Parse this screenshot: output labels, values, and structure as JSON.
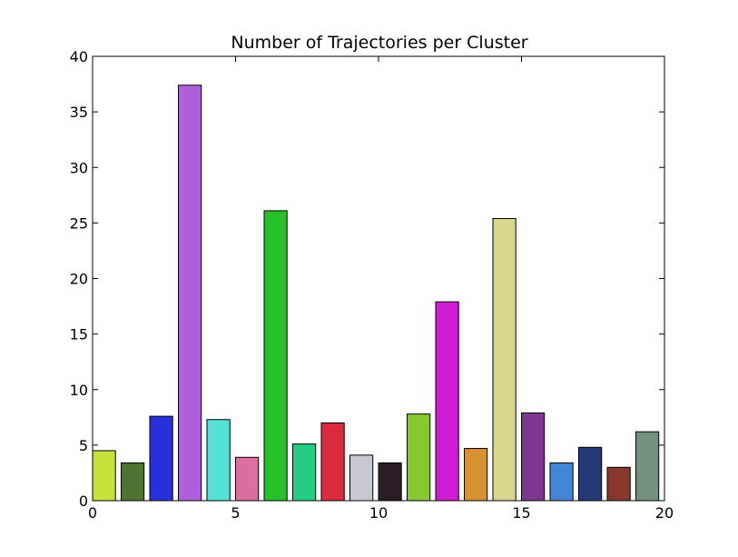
{
  "chart_data": {
    "type": "bar",
    "title": "Number of Trajectories per Cluster",
    "xlabel": "",
    "ylabel": "",
    "xlim": [
      0,
      20
    ],
    "ylim": [
      0,
      40
    ],
    "x_ticks": [
      0,
      5,
      10,
      15,
      20
    ],
    "y_ticks": [
      0,
      5,
      10,
      15,
      20,
      25,
      30,
      35,
      40
    ],
    "grid": false,
    "bar_width": 0.8,
    "bars": [
      {
        "x": 0,
        "value": 4.5,
        "color": "#c5e23a"
      },
      {
        "x": 1,
        "value": 3.4,
        "color": "#4b7531"
      },
      {
        "x": 2,
        "value": 7.6,
        "color": "#2732dc"
      },
      {
        "x": 3,
        "value": 37.4,
        "color": "#ad5fdc"
      },
      {
        "x": 4,
        "value": 7.3,
        "color": "#54e3d6"
      },
      {
        "x": 5,
        "value": 3.9,
        "color": "#dc6fa1"
      },
      {
        "x": 6,
        "value": 26.1,
        "color": "#27c22b"
      },
      {
        "x": 7,
        "value": 5.1,
        "color": "#25cd82"
      },
      {
        "x": 8,
        "value": 7.0,
        "color": "#dc2a3f"
      },
      {
        "x": 9,
        "value": 4.1,
        "color": "#c8c8d2"
      },
      {
        "x": 10,
        "value": 3.4,
        "color": "#2a1d25"
      },
      {
        "x": 11,
        "value": 7.8,
        "color": "#84c92e"
      },
      {
        "x": 12,
        "value": 17.9,
        "color": "#d01cd4"
      },
      {
        "x": 13,
        "value": 4.7,
        "color": "#d99231"
      },
      {
        "x": 14,
        "value": 25.4,
        "color": "#d9d68d"
      },
      {
        "x": 15,
        "value": 7.9,
        "color": "#7e3790"
      },
      {
        "x": 16,
        "value": 3.4,
        "color": "#4486d6"
      },
      {
        "x": 17,
        "value": 4.8,
        "color": "#233c76"
      },
      {
        "x": 18,
        "value": 3.0,
        "color": "#89372c"
      },
      {
        "x": 19,
        "value": 6.2,
        "color": "#73927d"
      }
    ]
  }
}
